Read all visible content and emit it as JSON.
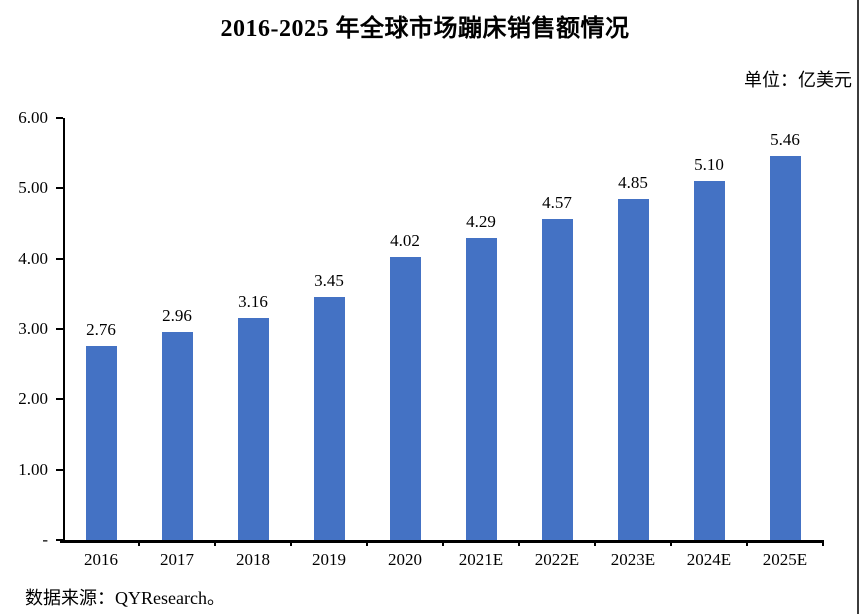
{
  "page": {
    "unit_label": "单位：亿美元",
    "source_label": "数据来源：QYResearch。"
  },
  "chart_data": {
    "type": "bar",
    "title": "2016-2025 年全球市场蹦床销售额情况",
    "unit": "亿美元",
    "categories": [
      "2016",
      "2017",
      "2018",
      "2019",
      "2020",
      "2021E",
      "2022E",
      "2023E",
      "2024E",
      "2025E"
    ],
    "values": [
      2.76,
      2.96,
      3.16,
      3.45,
      4.02,
      4.29,
      4.57,
      4.85,
      5.1,
      5.46
    ],
    "value_labels": [
      "2.76",
      "2.96",
      "3.16",
      "3.45",
      "4.02",
      "4.29",
      "4.57",
      "4.85",
      "5.10",
      "5.46"
    ],
    "ylim": [
      0,
      6
    ],
    "ytick_values": [
      6,
      5,
      4,
      3,
      2,
      1,
      0
    ],
    "ytick_labels": [
      "6.00",
      "5.00",
      "4.00",
      "3.00",
      "2.00",
      "1.00",
      "-"
    ],
    "bar_color": "#4472C4",
    "grid": false,
    "legend": false,
    "source": "QYResearch"
  }
}
